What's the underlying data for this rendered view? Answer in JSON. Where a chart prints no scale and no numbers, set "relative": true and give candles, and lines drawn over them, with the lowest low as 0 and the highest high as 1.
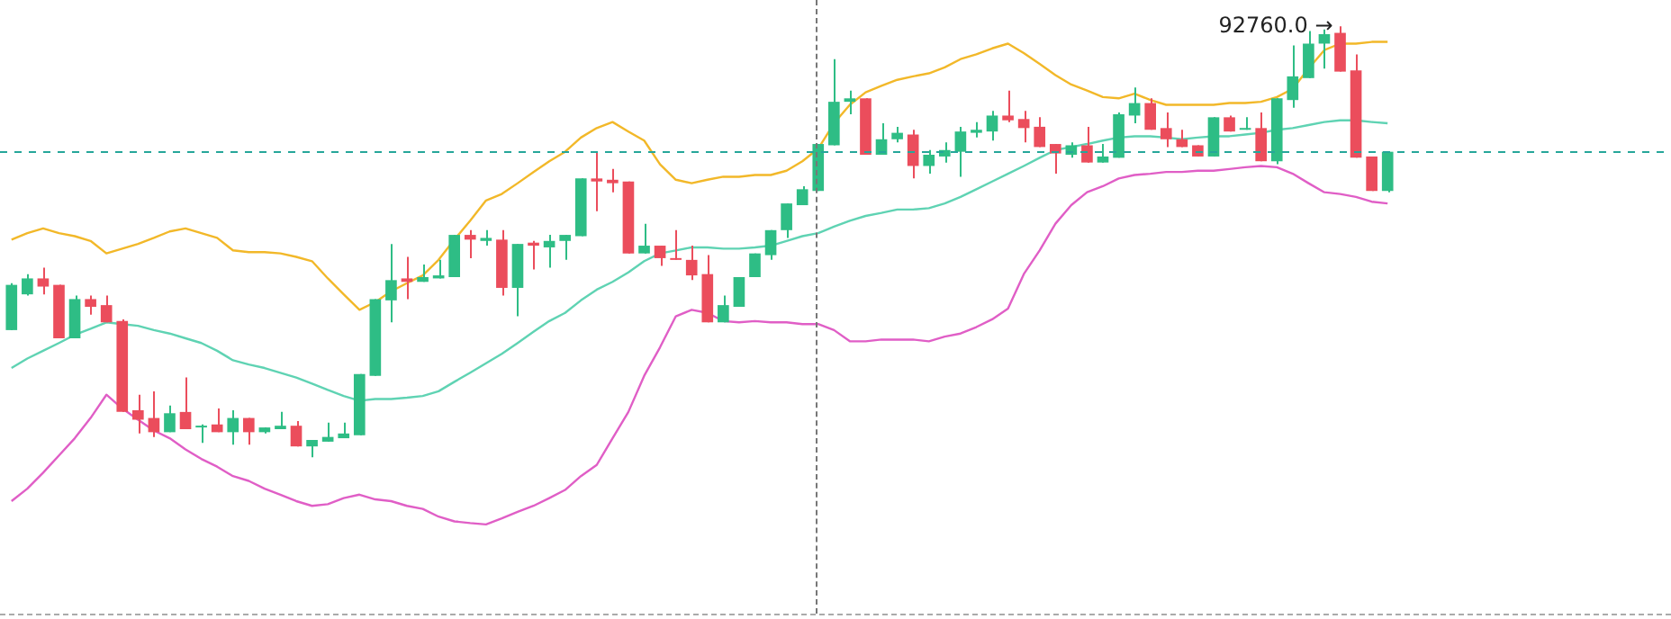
{
  "chart_data": {
    "type": "candlestick",
    "relative": true,
    "tick_labels": false,
    "categories": [
      null,
      null,
      null,
      null,
      null,
      null,
      null,
      null,
      null,
      null,
      null,
      null,
      null,
      null,
      null,
      null,
      null,
      null,
      null,
      null,
      null,
      null,
      null,
      null,
      null,
      null,
      null,
      null,
      null,
      null,
      null,
      null,
      null,
      null,
      null,
      null,
      null,
      null,
      null,
      null,
      null,
      null,
      null,
      null,
      null,
      null,
      null,
      null,
      null,
      null,
      null,
      null,
      null,
      null,
      null,
      null,
      null,
      null,
      null,
      null,
      null,
      null,
      null,
      null,
      null,
      null,
      null,
      null,
      null,
      null,
      null,
      null,
      null,
      null,
      null,
      null,
      null,
      null,
      null,
      null,
      null,
      null,
      null,
      null,
      null,
      null,
      null,
      null
    ],
    "ohlc": [
      [
        0.295,
        0.404,
        0.295,
        0.4
      ],
      [
        0.378,
        0.425,
        0.375,
        0.415
      ],
      [
        0.415,
        0.44,
        0.378,
        0.396
      ],
      [
        0.4,
        0.4,
        0.276,
        0.276
      ],
      [
        0.276,
        0.375,
        0.276,
        0.367
      ],
      [
        0.367,
        0.375,
        0.331,
        0.349
      ],
      [
        0.353,
        0.375,
        0.313,
        0.313
      ],
      [
        0.316,
        0.32,
        0.105,
        0.105
      ],
      [
        0.109,
        0.145,
        0.055,
        0.087
      ],
      [
        0.091,
        0.153,
        0.047,
        0.058
      ],
      [
        0.058,
        0.12,
        0.058,
        0.102
      ],
      [
        0.105,
        0.185,
        0.065,
        0.065
      ],
      [
        0.069,
        0.076,
        0.033,
        0.073
      ],
      [
        0.076,
        0.113,
        0.058,
        0.058
      ],
      [
        0.058,
        0.109,
        0.029,
        0.091
      ],
      [
        0.091,
        0.091,
        0.029,
        0.058
      ],
      [
        0.058,
        0.069,
        0.055,
        0.069
      ],
      [
        0.065,
        0.105,
        0.065,
        0.073
      ],
      [
        0.073,
        0.084,
        0.025,
        0.025
      ],
      [
        0.025,
        0.04,
        0,
        0.04
      ],
      [
        0.036,
        0.08,
        0.036,
        0.047
      ],
      [
        0.044,
        0.08,
        0.044,
        0.055
      ],
      [
        0.051,
        0.193,
        0.051,
        0.193
      ],
      [
        0.189,
        0.367,
        0.189,
        0.367
      ],
      [
        0.364,
        0.495,
        0.313,
        0.411
      ],
      [
        0.415,
        0.465,
        0.367,
        0.407
      ],
      [
        0.407,
        0.447,
        0.407,
        0.418
      ],
      [
        0.415,
        0.458,
        0.415,
        0.422
      ],
      [
        0.418,
        0.516,
        0.418,
        0.516
      ],
      [
        0.516,
        0.527,
        0.462,
        0.505
      ],
      [
        0.502,
        0.527,
        0.491,
        0.509
      ],
      [
        0.505,
        0.527,
        0.375,
        0.393
      ],
      [
        0.393,
        0.495,
        0.327,
        0.495
      ],
      [
        0.498,
        0.502,
        0.436,
        0.491
      ],
      [
        0.487,
        0.516,
        0.44,
        0.502
      ],
      [
        0.502,
        0.516,
        0.458,
        0.516
      ],
      [
        0.513,
        0.647,
        0.513,
        0.647
      ],
      [
        0.647,
        0.709,
        0.571,
        0.64
      ],
      [
        0.644,
        0.669,
        0.615,
        0.636
      ],
      [
        0.64,
        0.64,
        0.473,
        0.473
      ],
      [
        0.473,
        0.542,
        0.473,
        0.491
      ],
      [
        0.491,
        0.491,
        0.444,
        0.462
      ],
      [
        0.462,
        0.527,
        0.458,
        0.458
      ],
      [
        0.458,
        0.491,
        0.411,
        0.422
      ],
      [
        0.425,
        0.469,
        0.313,
        0.313
      ],
      [
        0.313,
        0.375,
        0.313,
        0.353
      ],
      [
        0.349,
        0.418,
        0.349,
        0.418
      ],
      [
        0.418,
        0.473,
        0.418,
        0.473
      ],
      [
        0.469,
        0.527,
        0.458,
        0.527
      ],
      [
        0.527,
        0.589,
        0.509,
        0.589
      ],
      [
        0.585,
        0.629,
        0.585,
        0.622
      ],
      [
        0.618,
        0.727,
        0.618,
        0.727
      ],
      [
        0.724,
        0.924,
        0.724,
        0.825
      ],
      [
        0.825,
        0.851,
        0.796,
        0.833
      ],
      [
        0.833,
        0.833,
        0.702,
        0.702
      ],
      [
        0.702,
        0.775,
        0.702,
        0.738
      ],
      [
        0.738,
        0.767,
        0.731,
        0.753
      ],
      [
        0.749,
        0.76,
        0.647,
        0.676
      ],
      [
        0.676,
        0.713,
        0.658,
        0.702
      ],
      [
        0.698,
        0.731,
        0.684,
        0.713
      ],
      [
        0.709,
        0.767,
        0.651,
        0.756
      ],
      [
        0.753,
        0.778,
        0.742,
        0.76
      ],
      [
        0.756,
        0.804,
        0.735,
        0.793
      ],
      [
        0.793,
        0.851,
        0.778,
        0.782
      ],
      [
        0.785,
        0.804,
        0.731,
        0.764
      ],
      [
        0.767,
        0.789,
        0.72,
        0.72
      ],
      [
        0.727,
        0.727,
        0.658,
        0.705
      ],
      [
        0.702,
        0.731,
        0.695,
        0.724
      ],
      [
        0.724,
        0.767,
        0.684,
        0.684
      ],
      [
        0.684,
        0.727,
        0.684,
        0.698
      ],
      [
        0.695,
        0.8,
        0.695,
        0.796
      ],
      [
        0.793,
        0.858,
        0.775,
        0.822
      ],
      [
        0.822,
        0.833,
        0.76,
        0.76
      ],
      [
        0.764,
        0.8,
        0.72,
        0.738
      ],
      [
        0.738,
        0.76,
        0.72,
        0.72
      ],
      [
        0.724,
        0.724,
        0.698,
        0.698
      ],
      [
        0.698,
        0.789,
        0.698,
        0.789
      ],
      [
        0.789,
        0.793,
        0.756,
        0.756
      ],
      [
        0.76,
        0.789,
        0.76,
        0.764
      ],
      [
        0.764,
        0.8,
        0.687,
        0.687
      ],
      [
        0.687,
        0.833,
        0.68,
        0.833
      ],
      [
        0.829,
        0.956,
        0.811,
        0.884
      ],
      [
        0.88,
        0.989,
        0.88,
        0.96
      ],
      [
        0.96,
        0.993,
        0.902,
        0.982
      ],
      [
        0.985,
        1,
        0.895,
        0.895
      ],
      [
        0.898,
        0.935,
        0.695,
        0.695
      ],
      [
        0.698,
        0.698,
        0.618,
        0.618
      ],
      [
        0.618,
        0.709,
        0.615,
        0.709
      ]
    ],
    "series": [
      {
        "type": "line",
        "color": "#f2b829",
        "values": [
          0.505,
          0.52,
          0.531,
          0.52,
          0.513,
          0.502,
          0.473,
          0.484,
          0.495,
          0.509,
          0.524,
          0.531,
          0.52,
          0.509,
          0.48,
          0.476,
          0.476,
          0.473,
          0.465,
          0.455,
          0.415,
          0.378,
          0.342,
          0.36,
          0.385,
          0.404,
          0.422,
          0.458,
          0.505,
          0.549,
          0.596,
          0.611,
          0.636,
          0.662,
          0.687,
          0.709,
          0.742,
          0.764,
          0.778,
          0.756,
          0.735,
          0.68,
          0.644,
          0.636,
          0.644,
          0.651,
          0.651,
          0.655,
          0.655,
          0.665,
          0.687,
          0.716,
          0.775,
          0.818,
          0.847,
          0.862,
          0.876,
          0.884,
          0.891,
          0.905,
          0.924,
          0.935,
          0.949,
          0.96,
          0.938,
          0.913,
          0.887,
          0.865,
          0.851,
          0.836,
          0.833,
          0.844,
          0.829,
          0.818,
          0.818,
          0.818,
          0.818,
          0.822,
          0.822,
          0.825,
          0.836,
          0.855,
          0.902,
          0.945,
          0.96,
          0.96,
          0.964,
          0.964
        ]
      },
      {
        "type": "line",
        "color": "#5fd3b3",
        "values": [
          0.207,
          0.229,
          0.247,
          0.265,
          0.284,
          0.298,
          0.313,
          0.309,
          0.305,
          0.295,
          0.287,
          0.276,
          0.265,
          0.247,
          0.225,
          0.215,
          0.207,
          0.196,
          0.185,
          0.171,
          0.156,
          0.142,
          0.131,
          0.135,
          0.135,
          0.138,
          0.142,
          0.153,
          0.175,
          0.196,
          0.218,
          0.24,
          0.265,
          0.291,
          0.316,
          0.335,
          0.364,
          0.389,
          0.407,
          0.429,
          0.455,
          0.473,
          0.48,
          0.487,
          0.487,
          0.484,
          0.484,
          0.487,
          0.491,
          0.502,
          0.513,
          0.52,
          0.535,
          0.549,
          0.56,
          0.567,
          0.575,
          0.575,
          0.578,
          0.589,
          0.604,
          0.622,
          0.64,
          0.658,
          0.676,
          0.695,
          0.713,
          0.72,
          0.727,
          0.735,
          0.742,
          0.745,
          0.745,
          0.742,
          0.738,
          0.742,
          0.745,
          0.745,
          0.749,
          0.753,
          0.76,
          0.764,
          0.771,
          0.778,
          0.782,
          0.782,
          0.778,
          0.775
        ]
      },
      {
        "type": "line",
        "color": "#e05ec6",
        "values": [
          -0.102,
          -0.073,
          -0.036,
          0.004,
          0.044,
          0.091,
          0.145,
          0.113,
          0.087,
          0.062,
          0.044,
          0.018,
          -0.004,
          -0.022,
          -0.044,
          -0.055,
          -0.073,
          -0.087,
          -0.102,
          -0.113,
          -0.109,
          -0.095,
          -0.087,
          -0.098,
          -0.102,
          -0.113,
          -0.12,
          -0.138,
          -0.149,
          -0.153,
          -0.156,
          -0.142,
          -0.127,
          -0.113,
          -0.095,
          -0.076,
          -0.044,
          -0.018,
          0.044,
          0.105,
          0.189,
          0.255,
          0.327,
          0.342,
          0.335,
          0.316,
          0.313,
          0.316,
          0.313,
          0.313,
          0.309,
          0.309,
          0.295,
          0.269,
          0.269,
          0.273,
          0.273,
          0.273,
          0.269,
          0.28,
          0.287,
          0.302,
          0.32,
          0.345,
          0.425,
          0.48,
          0.542,
          0.585,
          0.615,
          0.629,
          0.647,
          0.655,
          0.658,
          0.662,
          0.662,
          0.665,
          0.665,
          0.669,
          0.673,
          0.676,
          0.673,
          0.658,
          0.636,
          0.615,
          0.611,
          0.604,
          0.593,
          0.589
        ]
      }
    ],
    "ref_lines": [
      {
        "axis": "y",
        "value": 0.709,
        "color": "#26a69a",
        "line_style": "dashed"
      }
    ],
    "annotations": [
      "92760.0 →"
    ]
  }
}
